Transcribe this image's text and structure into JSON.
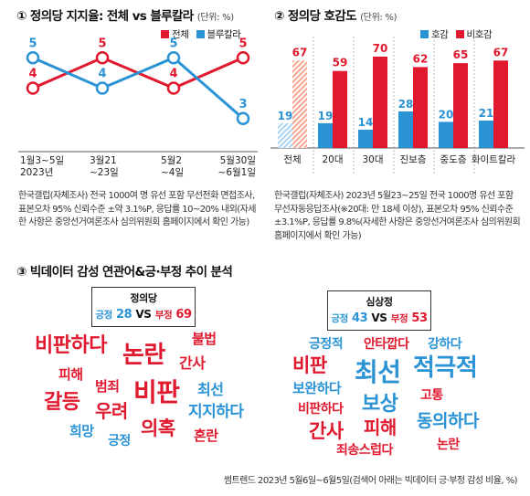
{
  "colors": {
    "red": "#e0192e",
    "blue": "#2a93d5",
    "hatch_blue": "#a9d4f1",
    "hatch_red": "#f7a58e"
  },
  "chart_data": [
    {
      "type": "line",
      "title": "① 정의당 지지율: 전체 vs 블루칼라",
      "unit": "(단위: %)",
      "categories": [
        "1월3~5일\n2023년",
        "3월21\n~23일",
        "5월2\n~4일",
        "5월30일\n~6월1일"
      ],
      "series": [
        {
          "name": "전체",
          "values": [
            4,
            5,
            4,
            5
          ]
        },
        {
          "name": "블루칼라",
          "values": [
            5,
            4,
            5,
            3
          ]
        }
      ],
      "ylim": [
        2,
        6
      ],
      "legend": "top-right",
      "note": "한국갤럽(자체조사) 전국 1000여 명 유선 포함 무선전화 면접조사, 표본오차 95% 신뢰수준 ±약 3.1%P, 응답률 10~20% 내외(자세한 사항은 중앙선거여론조사 심의위원회 홈페이지에서 확인 가능)"
    },
    {
      "type": "bar",
      "title": "② 정의당 호감도",
      "unit": "(단위: %)",
      "categories": [
        "전체",
        "20대",
        "30대",
        "진보층",
        "중도층",
        "화이트칼라"
      ],
      "series": [
        {
          "name": "호감",
          "values": [
            19,
            19,
            14,
            28,
            20,
            21
          ]
        },
        {
          "name": "비호감",
          "values": [
            67,
            59,
            70,
            62,
            65,
            67
          ]
        }
      ],
      "ylim": [
        0,
        75
      ],
      "legend": "top-right",
      "note": "한국갤럽(자체조사) 2023년 5월23~25일 전국 1000명 유선 포함 무선자동응답조사(※20대: 만 18세 이상), 표본오차 95% 신뢰수준 ±3.1%P, 응답률 9.8%(자세한 사항은 중앙선거여론조사 심의위원회 홈페이지에서 확인 가능)"
    }
  ],
  "section3": {
    "title": "③ 빅데이터 감성 연관어&긍·부정 추이 분석",
    "source": "썸트렌드 2023년 5월6일~6월5일(검색어 아래는 빅데이터 긍·부정 감성 비율, %)",
    "party_a": {
      "name": "정의당",
      "pos_label": "긍정",
      "pos": "28",
      "vs": "VS",
      "neg_label": "부정",
      "neg": "69",
      "words": [
        {
          "t": "비판하다",
          "c": "red"
        },
        {
          "t": "논란",
          "c": "red"
        },
        {
          "t": "불법",
          "c": "red"
        },
        {
          "t": "간사",
          "c": "red"
        },
        {
          "t": "피해",
          "c": "red"
        },
        {
          "t": "범죄",
          "c": "red"
        },
        {
          "t": "비판",
          "c": "red"
        },
        {
          "t": "최선",
          "c": "blue"
        },
        {
          "t": "갈등",
          "c": "red"
        },
        {
          "t": "우려",
          "c": "red"
        },
        {
          "t": "지지하다",
          "c": "blue"
        },
        {
          "t": "희망",
          "c": "blue"
        },
        {
          "t": "의혹",
          "c": "red"
        },
        {
          "t": "긍정",
          "c": "blue"
        },
        {
          "t": "혼란",
          "c": "red"
        }
      ]
    },
    "party_b": {
      "name": "심상정",
      "pos_label": "긍정",
      "pos": "43",
      "vs": "VS",
      "neg_label": "부정",
      "neg": "53",
      "words": [
        {
          "t": "긍정적",
          "c": "blue"
        },
        {
          "t": "안타깝다",
          "c": "red"
        },
        {
          "t": "강하다",
          "c": "blue"
        },
        {
          "t": "비판",
          "c": "red"
        },
        {
          "t": "최선",
          "c": "blue"
        },
        {
          "t": "적극적",
          "c": "blue"
        },
        {
          "t": "보완하다",
          "c": "blue"
        },
        {
          "t": "고통",
          "c": "red"
        },
        {
          "t": "비판하다",
          "c": "red"
        },
        {
          "t": "보상",
          "c": "blue"
        },
        {
          "t": "간사",
          "c": "red"
        },
        {
          "t": "피해",
          "c": "red"
        },
        {
          "t": "동의하다",
          "c": "blue"
        },
        {
          "t": "논란",
          "c": "red"
        },
        {
          "t": "죄송스럽다",
          "c": "red"
        }
      ]
    }
  }
}
